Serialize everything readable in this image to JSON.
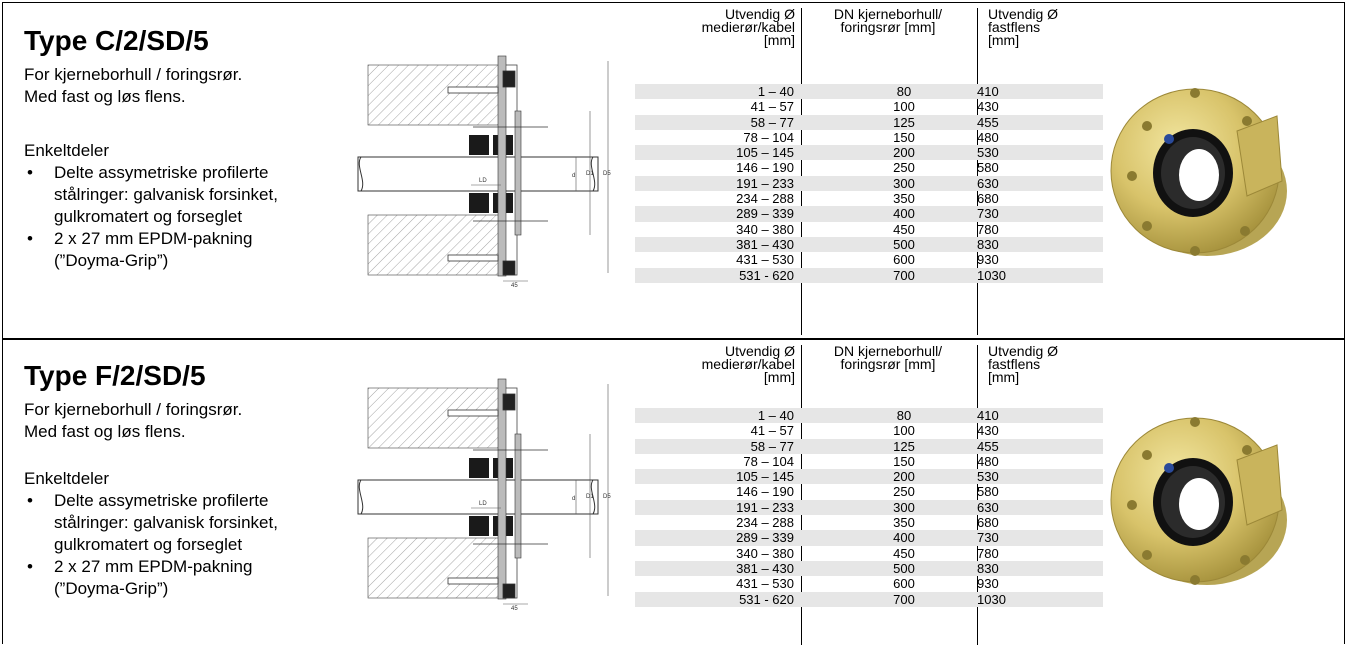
{
  "panels": [
    {
      "title": "Type C/2/SD/5",
      "desc": [
        "For kjerneborhull / foringsrør.",
        "Med fast og løs flens."
      ],
      "parts_heading": "Enkeltdeler",
      "bullet": "•",
      "parts": [
        [
          "Delte assymetriske profilerte",
          "stålringer: galvanisk forsinket,",
          "gulkromatert og      forseglet"
        ],
        [
          "2 x 27 mm EPDM-pakning",
          "(”Doyma-Grip”)"
        ]
      ],
      "drawing_labels": {
        "ld": "LD",
        "d": "d",
        "d1": "D1",
        "d5": "D5",
        "dim45": "45"
      },
      "table": {
        "headers": [
          [
            "Utvendig Ø",
            "medierør/kabel",
            "[mm]"
          ],
          [
            "DN  kjerneborhull/",
            "foringsrør [mm]"
          ],
          [
            "Utvendig Ø",
            "fastflens",
            "[mm]"
          ]
        ],
        "rows": [
          [
            "1 – 40",
            "80",
            "410"
          ],
          [
            "41 – 57",
            "100",
            "430"
          ],
          [
            "58 – 77",
            "125",
            "455"
          ],
          [
            "78 – 104",
            "150",
            "480"
          ],
          [
            "105 – 145",
            "200",
            "530"
          ],
          [
            "146 – 190",
            "250",
            "580"
          ],
          [
            "191 – 233",
            "300",
            "630"
          ],
          [
            "234 – 288",
            "350",
            "680"
          ],
          [
            "289 – 339",
            "400",
            "730"
          ],
          [
            "340 – 380",
            "450",
            "780"
          ],
          [
            "381 – 430",
            "500",
            "830"
          ],
          [
            "431 – 530",
            "600",
            "930"
          ],
          [
            "531 - 620",
            "700",
            "1030"
          ]
        ]
      }
    },
    {
      "title": "Type F/2/SD/5",
      "desc": [
        "For kjerneborhull / foringsrør.",
        "Med fast og løs flens."
      ],
      "parts_heading": "Enkeltdeler",
      "bullet": "•",
      "parts": [
        [
          "Delte assymetriske profilerte",
          "stålringer: galvanisk forsinket,",
          "gulkromatert og      forseglet"
        ],
        [
          "2 x 27 mm EPDM-pakning",
          "(”Doyma-Grip”)"
        ]
      ],
      "drawing_labels": {
        "ld": "LD",
        "d": "d",
        "d1": "D1",
        "d5": "D5",
        "dim45": "45"
      },
      "table": {
        "headers": [
          [
            "Utvendig Ø",
            "medierør/kabel",
            "[mm]"
          ],
          [
            "DN  kjerneborhull/",
            "foringsrør [mm]"
          ],
          [
            "Utvendig Ø",
            "fastflens",
            "[mm]"
          ]
        ],
        "rows": [
          [
            "1 – 40",
            "80",
            "410"
          ],
          [
            "41 – 57",
            "100",
            "430"
          ],
          [
            "58 – 77",
            "125",
            "455"
          ],
          [
            "78 – 104",
            "150",
            "480"
          ],
          [
            "105 – 145",
            "200",
            "530"
          ],
          [
            "146 – 190",
            "250",
            "580"
          ],
          [
            "191 – 233",
            "300",
            "630"
          ],
          [
            "234 – 288",
            "350",
            "680"
          ],
          [
            "289 – 339",
            "400",
            "730"
          ],
          [
            "340 – 380",
            "450",
            "780"
          ],
          [
            "381 – 430",
            "500",
            "830"
          ],
          [
            "431 – 530",
            "600",
            "930"
          ],
          [
            "531 - 620",
            "700",
            "1030"
          ]
        ]
      }
    }
  ],
  "colors": {
    "row_shade": "#e6e6e6",
    "flange": "#d8c36a",
    "seal": "#1a1a1a"
  }
}
